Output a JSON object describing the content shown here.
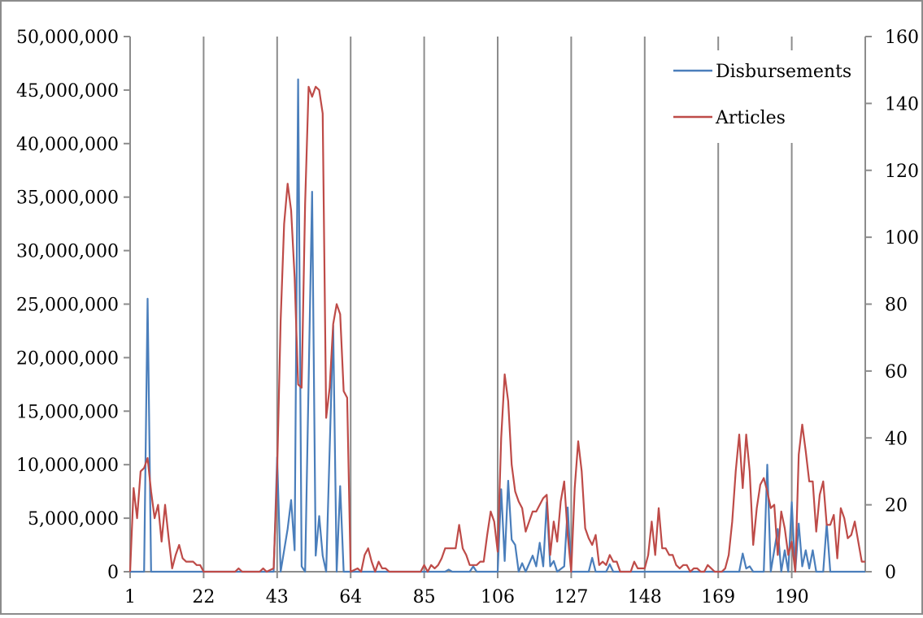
{
  "chart_data": {
    "type": "line",
    "x_tick_labels": [
      "1",
      "22",
      "43",
      "64",
      "85",
      "106",
      "127",
      "148",
      "169",
      "190"
    ],
    "x_tick_values": [
      1,
      22,
      43,
      64,
      85,
      106,
      127,
      148,
      169,
      190
    ],
    "x_range": [
      1,
      211
    ],
    "y_left_range": [
      0,
      50000000
    ],
    "y_left_tick_labels": [
      "0",
      "5,000,000",
      "10,000,000",
      "15,000,000",
      "20,000,000",
      "25,000,000",
      "30,000,000",
      "35,000,000",
      "40,000,000",
      "45,000,000",
      "50,000,000"
    ],
    "y_right_range": [
      0,
      160
    ],
    "y_right_tick_labels": [
      "0",
      "20",
      "40",
      "60",
      "80",
      "100",
      "120",
      "140",
      "160"
    ],
    "vertical_gridlines": true,
    "legend_position": "top-right",
    "series": [
      {
        "name": "Disbursements",
        "axis": "left",
        "color": "#4a7ebb",
        "points": [
          [
            1,
            0
          ],
          [
            5,
            0
          ],
          [
            6,
            25500000
          ],
          [
            7,
            0
          ],
          [
            22,
            0
          ],
          [
            42,
            0
          ],
          [
            43,
            10700000
          ],
          [
            44,
            0
          ],
          [
            46,
            4000000
          ],
          [
            47,
            6700000
          ],
          [
            48,
            2000000
          ],
          [
            49,
            46000000
          ],
          [
            50,
            500000
          ],
          [
            51,
            0
          ],
          [
            53,
            35500000
          ],
          [
            54,
            1500000
          ],
          [
            55,
            5200000
          ],
          [
            56,
            1500000
          ],
          [
            57,
            0
          ],
          [
            59,
            23000000
          ],
          [
            60,
            0
          ],
          [
            61,
            8000000
          ],
          [
            62,
            0
          ],
          [
            64,
            0
          ],
          [
            85,
            0
          ],
          [
            91,
            0
          ],
          [
            92,
            200000
          ],
          [
            93,
            0
          ],
          [
            98,
            0
          ],
          [
            99,
            500000
          ],
          [
            100,
            0
          ],
          [
            106,
            0
          ],
          [
            107,
            7700000
          ],
          [
            108,
            1000000
          ],
          [
            109,
            8500000
          ],
          [
            110,
            3000000
          ],
          [
            111,
            2500000
          ],
          [
            112,
            0
          ],
          [
            113,
            800000
          ],
          [
            114,
            0
          ],
          [
            116,
            1500000
          ],
          [
            117,
            500000
          ],
          [
            118,
            2700000
          ],
          [
            119,
            500000
          ],
          [
            120,
            6500000
          ],
          [
            121,
            500000
          ],
          [
            122,
            1000000
          ],
          [
            123,
            0
          ],
          [
            125,
            500000
          ],
          [
            126,
            6000000
          ],
          [
            127,
            0
          ],
          [
            132,
            0
          ],
          [
            133,
            1300000
          ],
          [
            134,
            0
          ],
          [
            137,
            0
          ],
          [
            138,
            700000
          ],
          [
            139,
            0
          ],
          [
            148,
            0
          ],
          [
            175,
            0
          ],
          [
            176,
            1700000
          ],
          [
            177,
            300000
          ],
          [
            178,
            500000
          ],
          [
            179,
            0
          ],
          [
            182,
            0
          ],
          [
            183,
            10000000
          ],
          [
            184,
            0
          ],
          [
            186,
            4000000
          ],
          [
            187,
            0
          ],
          [
            188,
            2000000
          ],
          [
            189,
            0
          ],
          [
            190,
            6500000
          ],
          [
            191,
            0
          ],
          [
            192,
            4500000
          ],
          [
            193,
            500000
          ],
          [
            194,
            2000000
          ],
          [
            195,
            300000
          ],
          [
            196,
            2000000
          ],
          [
            197,
            0
          ],
          [
            199,
            0
          ],
          [
            200,
            4500000
          ],
          [
            201,
            0
          ],
          [
            211,
            0
          ]
        ]
      },
      {
        "name": "Articles",
        "axis": "right",
        "color": "#be4b48",
        "points": [
          [
            1,
            0
          ],
          [
            2,
            25
          ],
          [
            3,
            16
          ],
          [
            4,
            30
          ],
          [
            5,
            31
          ],
          [
            6,
            34
          ],
          [
            7,
            24
          ],
          [
            8,
            16
          ],
          [
            9,
            20
          ],
          [
            10,
            9
          ],
          [
            11,
            20
          ],
          [
            12,
            10
          ],
          [
            13,
            1
          ],
          [
            14,
            5
          ],
          [
            15,
            8
          ],
          [
            16,
            4
          ],
          [
            17,
            3
          ],
          [
            18,
            3
          ],
          [
            19,
            3
          ],
          [
            20,
            2
          ],
          [
            21,
            2
          ],
          [
            22,
            0
          ],
          [
            31,
            0
          ],
          [
            32,
            1
          ],
          [
            33,
            0
          ],
          [
            38,
            0
          ],
          [
            39,
            1
          ],
          [
            40,
            0
          ],
          [
            42,
            1
          ],
          [
            43,
            30
          ],
          [
            44,
            75
          ],
          [
            45,
            104
          ],
          [
            46,
            116
          ],
          [
            47,
            108
          ],
          [
            48,
            88
          ],
          [
            49,
            56
          ],
          [
            50,
            55
          ],
          [
            51,
            110
          ],
          [
            52,
            145
          ],
          [
            53,
            142
          ],
          [
            54,
            145
          ],
          [
            55,
            144
          ],
          [
            56,
            137
          ],
          [
            57,
            46
          ],
          [
            58,
            55
          ],
          [
            59,
            74
          ],
          [
            60,
            80
          ],
          [
            61,
            77
          ],
          [
            62,
            54
          ],
          [
            63,
            52
          ],
          [
            64,
            0
          ],
          [
            66,
            1
          ],
          [
            67,
            0
          ],
          [
            68,
            5
          ],
          [
            69,
            7
          ],
          [
            70,
            3
          ],
          [
            71,
            0
          ],
          [
            72,
            3
          ],
          [
            73,
            1
          ],
          [
            74,
            1
          ],
          [
            75,
            0
          ],
          [
            84,
            0
          ],
          [
            85,
            2
          ],
          [
            86,
            0
          ],
          [
            87,
            2
          ],
          [
            88,
            1
          ],
          [
            89,
            2
          ],
          [
            90,
            4
          ],
          [
            91,
            7
          ],
          [
            92,
            7
          ],
          [
            93,
            7
          ],
          [
            94,
            7
          ],
          [
            95,
            14
          ],
          [
            96,
            7
          ],
          [
            97,
            5
          ],
          [
            98,
            2
          ],
          [
            99,
            2
          ],
          [
            100,
            2
          ],
          [
            101,
            3
          ],
          [
            102,
            3
          ],
          [
            103,
            11
          ],
          [
            104,
            18
          ],
          [
            105,
            15
          ],
          [
            106,
            6
          ],
          [
            107,
            40
          ],
          [
            108,
            59
          ],
          [
            109,
            51
          ],
          [
            110,
            32
          ],
          [
            111,
            24
          ],
          [
            112,
            21
          ],
          [
            113,
            19
          ],
          [
            114,
            12
          ],
          [
            115,
            15
          ],
          [
            116,
            18
          ],
          [
            117,
            18
          ],
          [
            118,
            20
          ],
          [
            119,
            22
          ],
          [
            120,
            23
          ],
          [
            121,
            5
          ],
          [
            122,
            15
          ],
          [
            123,
            9
          ],
          [
            124,
            21
          ],
          [
            125,
            27
          ],
          [
            126,
            11
          ],
          [
            127,
            0
          ],
          [
            128,
            25
          ],
          [
            129,
            39
          ],
          [
            130,
            30
          ],
          [
            131,
            13
          ],
          [
            132,
            10
          ],
          [
            133,
            8
          ],
          [
            134,
            11
          ],
          [
            135,
            2
          ],
          [
            136,
            3
          ],
          [
            137,
            2
          ],
          [
            138,
            5
          ],
          [
            139,
            3
          ],
          [
            140,
            3
          ],
          [
            141,
            0
          ],
          [
            144,
            0
          ],
          [
            145,
            3
          ],
          [
            146,
            1
          ],
          [
            147,
            1
          ],
          [
            148,
            1
          ],
          [
            149,
            5
          ],
          [
            150,
            15
          ],
          [
            151,
            5
          ],
          [
            152,
            19
          ],
          [
            153,
            7
          ],
          [
            154,
            7
          ],
          [
            155,
            5
          ],
          [
            156,
            5
          ],
          [
            157,
            2
          ],
          [
            158,
            1
          ],
          [
            159,
            2
          ],
          [
            160,
            2
          ],
          [
            161,
            0
          ],
          [
            162,
            1
          ],
          [
            163,
            1
          ],
          [
            164,
            0
          ],
          [
            165,
            0
          ],
          [
            166,
            2
          ],
          [
            167,
            1
          ],
          [
            168,
            0
          ],
          [
            169,
            0
          ],
          [
            170,
            0
          ],
          [
            171,
            1
          ],
          [
            172,
            5
          ],
          [
            173,
            15
          ],
          [
            174,
            30
          ],
          [
            175,
            41
          ],
          [
            176,
            25
          ],
          [
            177,
            41
          ],
          [
            178,
            30
          ],
          [
            179,
            8
          ],
          [
            180,
            19
          ],
          [
            181,
            26
          ],
          [
            182,
            28
          ],
          [
            183,
            24
          ],
          [
            184,
            19
          ],
          [
            185,
            20
          ],
          [
            186,
            5
          ],
          [
            187,
            18
          ],
          [
            188,
            13
          ],
          [
            189,
            5
          ],
          [
            190,
            9
          ],
          [
            191,
            0
          ],
          [
            192,
            35
          ],
          [
            193,
            44
          ],
          [
            194,
            36
          ],
          [
            195,
            27
          ],
          [
            196,
            27
          ],
          [
            197,
            12
          ],
          [
            198,
            23
          ],
          [
            199,
            27
          ],
          [
            200,
            14
          ],
          [
            201,
            14
          ],
          [
            202,
            17
          ],
          [
            203,
            4
          ],
          [
            204,
            19
          ],
          [
            205,
            16
          ],
          [
            206,
            10
          ],
          [
            207,
            11
          ],
          [
            208,
            15
          ],
          [
            209,
            9
          ],
          [
            210,
            3
          ],
          [
            211,
            3
          ]
        ]
      }
    ]
  }
}
